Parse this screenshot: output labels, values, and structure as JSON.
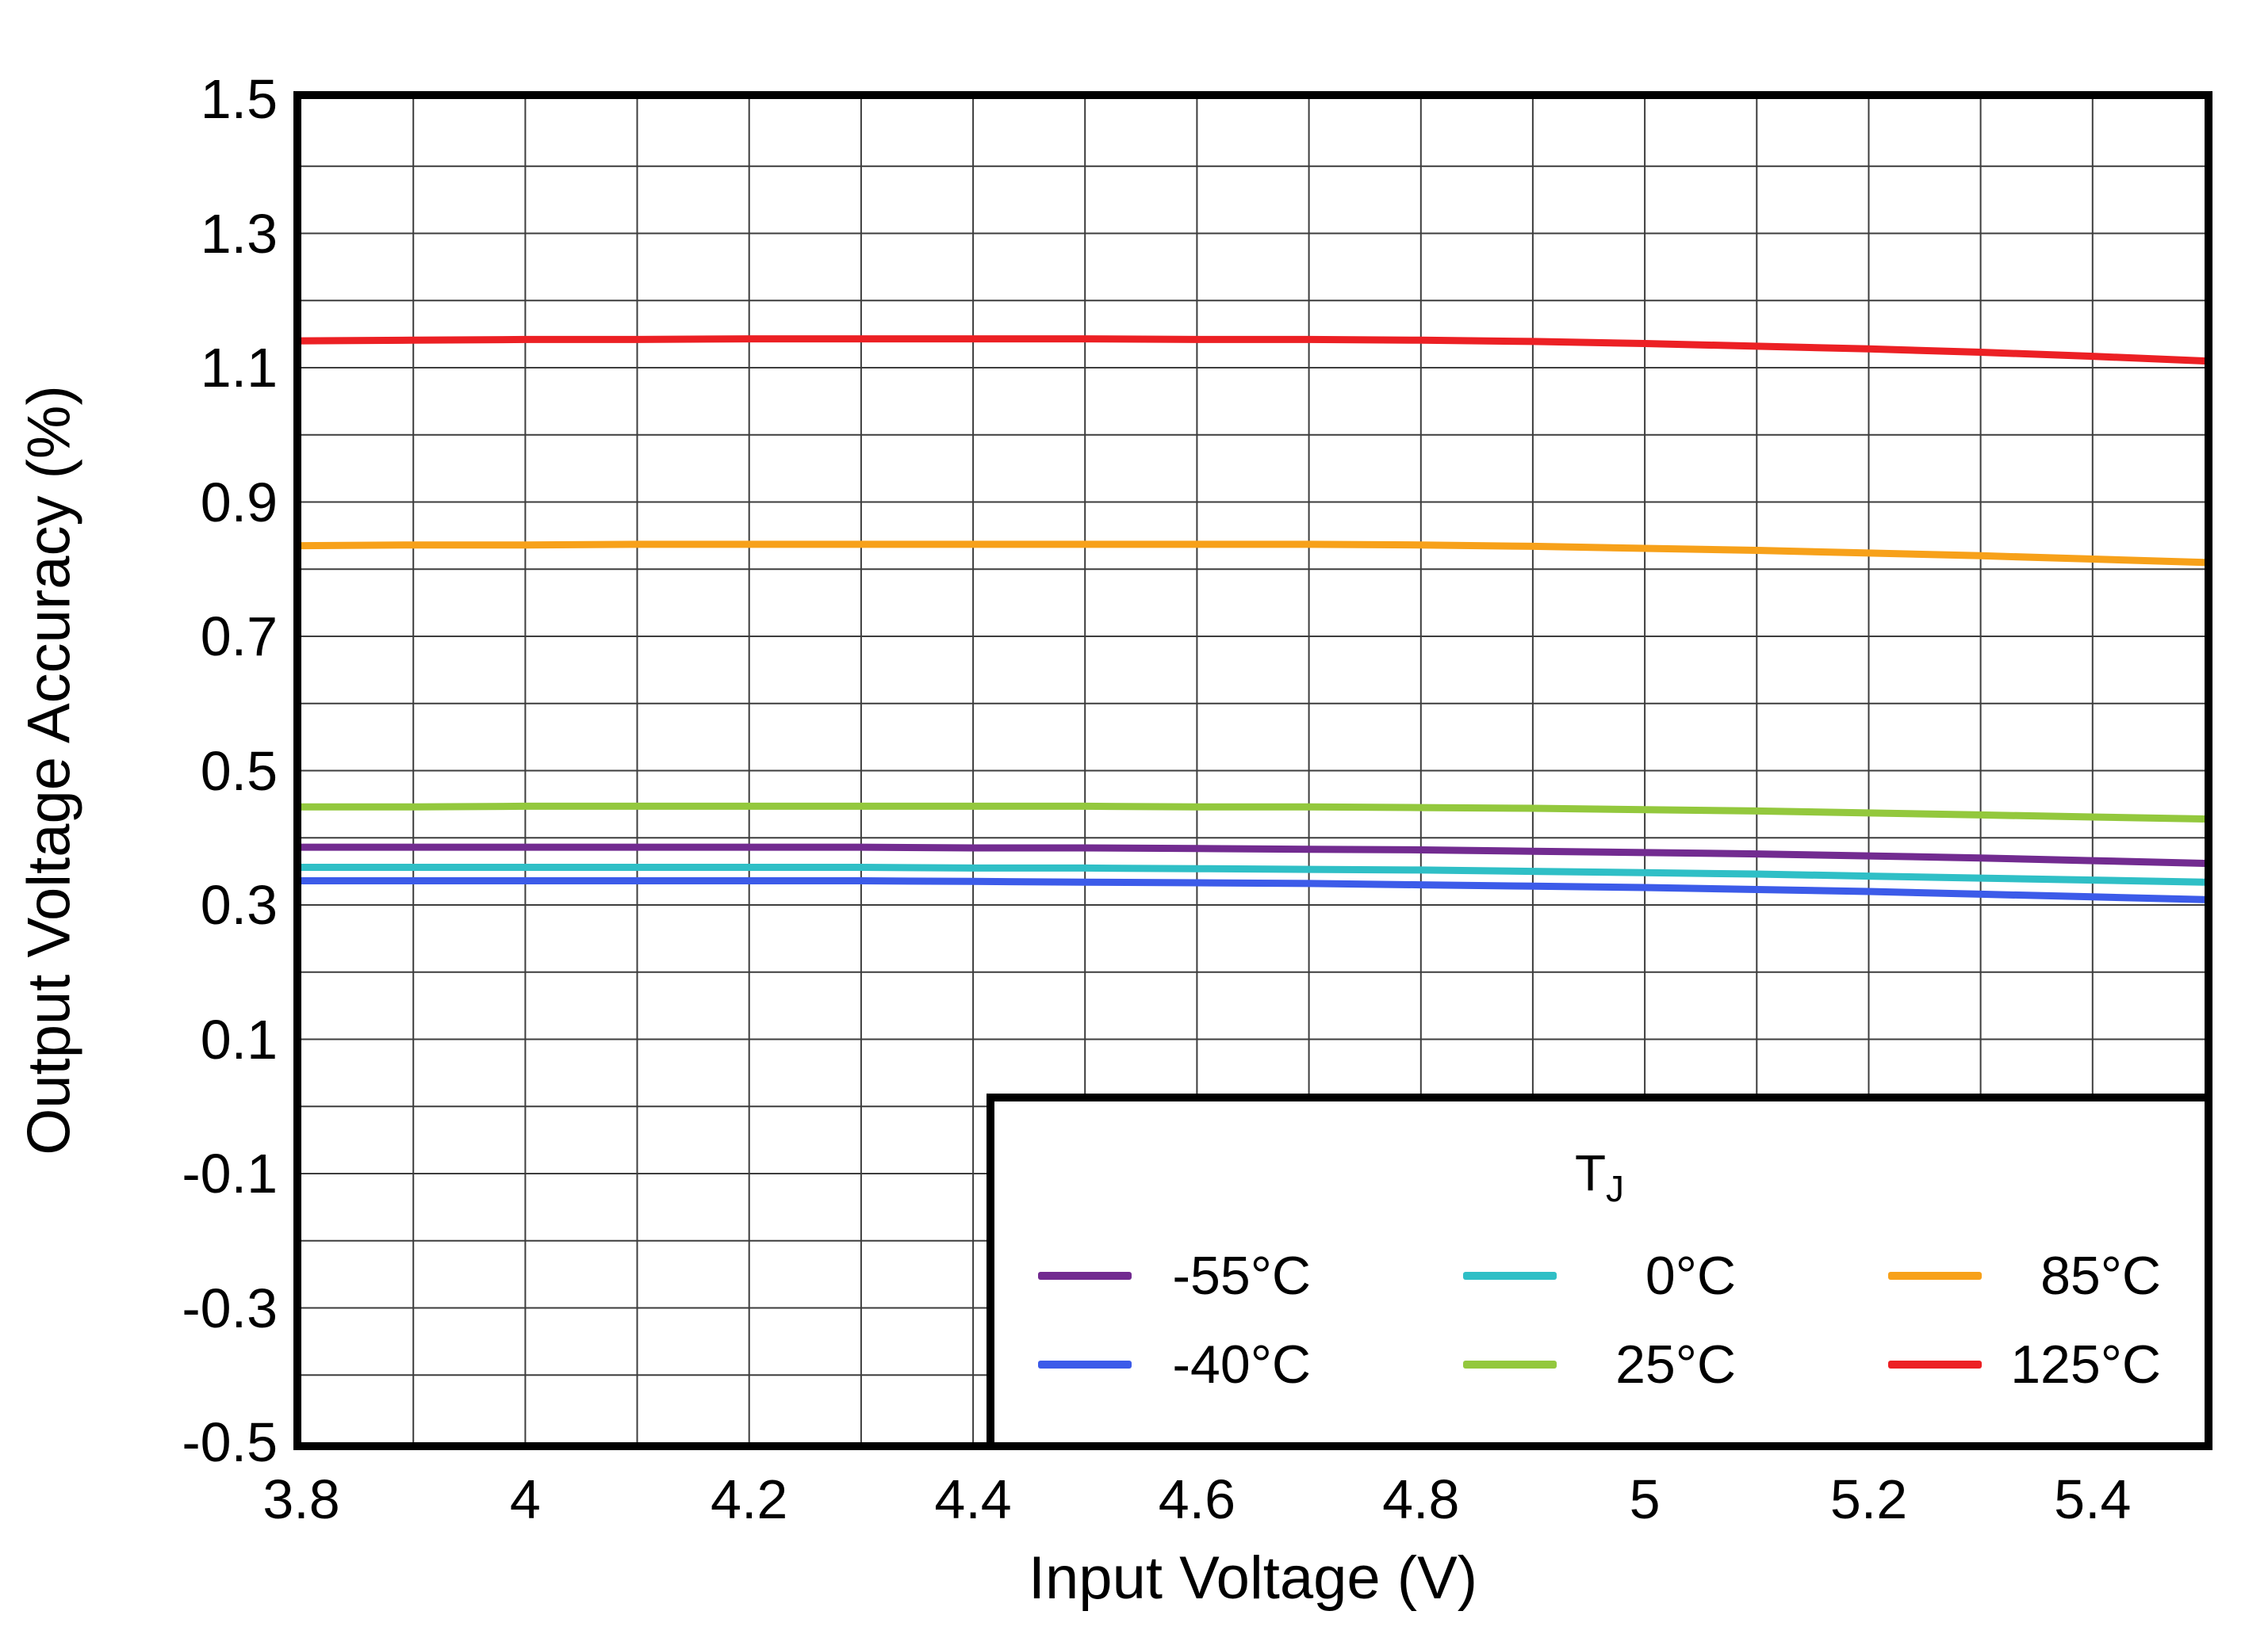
{
  "chart_data": {
    "type": "line",
    "title": "",
    "xlabel": "Input Voltage (V)",
    "ylabel": "Output Voltage Accuracy (%)",
    "xlim": [
      3.8,
      5.5
    ],
    "ylim": [
      -0.5,
      1.5
    ],
    "grid": true,
    "grid_step_x": 0.1,
    "grid_step_y": 0.1,
    "grid_color": "#3d3d3d",
    "legend_position": "lower right",
    "legend_title_main": "T",
    "legend_title_sub": "J",
    "x_ticks": [
      {
        "v": 3.8,
        "label": "3.8"
      },
      {
        "v": 4.0,
        "label": "4"
      },
      {
        "v": 4.2,
        "label": "4.2"
      },
      {
        "v": 4.4,
        "label": "4.4"
      },
      {
        "v": 4.6,
        "label": "4.6"
      },
      {
        "v": 4.8,
        "label": "4.8"
      },
      {
        "v": 5.0,
        "label": "5"
      },
      {
        "v": 5.2,
        "label": "5.2"
      },
      {
        "v": 5.4,
        "label": "5.4"
      }
    ],
    "y_ticks": [
      {
        "v": 1.5,
        "label": "1.5"
      },
      {
        "v": 1.3,
        "label": "1.3"
      },
      {
        "v": 1.1,
        "label": "1.1"
      },
      {
        "v": 0.9,
        "label": "0.9"
      },
      {
        "v": 0.7,
        "label": "0.7"
      },
      {
        "v": 0.5,
        "label": "0.5"
      },
      {
        "v": 0.3,
        "label": "0.3"
      },
      {
        "v": 0.1,
        "label": "0.1"
      },
      {
        "v": -0.1,
        "label": "-0.1"
      },
      {
        "v": -0.3,
        "label": "-0.3"
      },
      {
        "v": -0.5,
        "label": "-0.5"
      }
    ],
    "x": [
      3.8,
      3.9,
      4.0,
      4.1,
      4.2,
      4.3,
      4.4,
      4.5,
      4.6,
      4.7,
      4.8,
      4.9,
      5.0,
      5.1,
      5.2,
      5.3,
      5.4,
      5.5
    ],
    "series": [
      {
        "name": "-55°C",
        "color": "#722B90",
        "values": [
          0.386,
          0.386,
          0.386,
          0.386,
          0.386,
          0.386,
          0.385,
          0.385,
          0.384,
          0.383,
          0.382,
          0.38,
          0.378,
          0.376,
          0.373,
          0.37,
          0.366,
          0.362
        ]
      },
      {
        "name": "-40°C",
        "color": "#3C5BE9",
        "values": [
          0.336,
          0.336,
          0.336,
          0.336,
          0.336,
          0.336,
          0.335,
          0.334,
          0.333,
          0.332,
          0.33,
          0.328,
          0.326,
          0.323,
          0.32,
          0.316,
          0.312,
          0.308
        ]
      },
      {
        "name": "0°C",
        "color": "#2FBFC6",
        "values": [
          0.356,
          0.356,
          0.356,
          0.356,
          0.356,
          0.356,
          0.355,
          0.355,
          0.354,
          0.353,
          0.352,
          0.35,
          0.348,
          0.346,
          0.343,
          0.34,
          0.337,
          0.334
        ]
      },
      {
        "name": "25°C",
        "color": "#93C83D",
        "values": [
          0.446,
          0.446,
          0.447,
          0.447,
          0.447,
          0.447,
          0.447,
          0.447,
          0.446,
          0.446,
          0.445,
          0.444,
          0.442,
          0.44,
          0.437,
          0.434,
          0.431,
          0.428
        ]
      },
      {
        "name": "85°C",
        "color": "#F7A11A",
        "values": [
          0.835,
          0.836,
          0.836,
          0.837,
          0.837,
          0.837,
          0.837,
          0.837,
          0.837,
          0.837,
          0.836,
          0.834,
          0.831,
          0.828,
          0.824,
          0.82,
          0.815,
          0.81
        ]
      },
      {
        "name": "125°C",
        "color": "#EC2024",
        "values": [
          1.14,
          1.141,
          1.142,
          1.142,
          1.143,
          1.143,
          1.143,
          1.143,
          1.142,
          1.142,
          1.141,
          1.139,
          1.136,
          1.132,
          1.128,
          1.123,
          1.117,
          1.11
        ]
      }
    ]
  }
}
